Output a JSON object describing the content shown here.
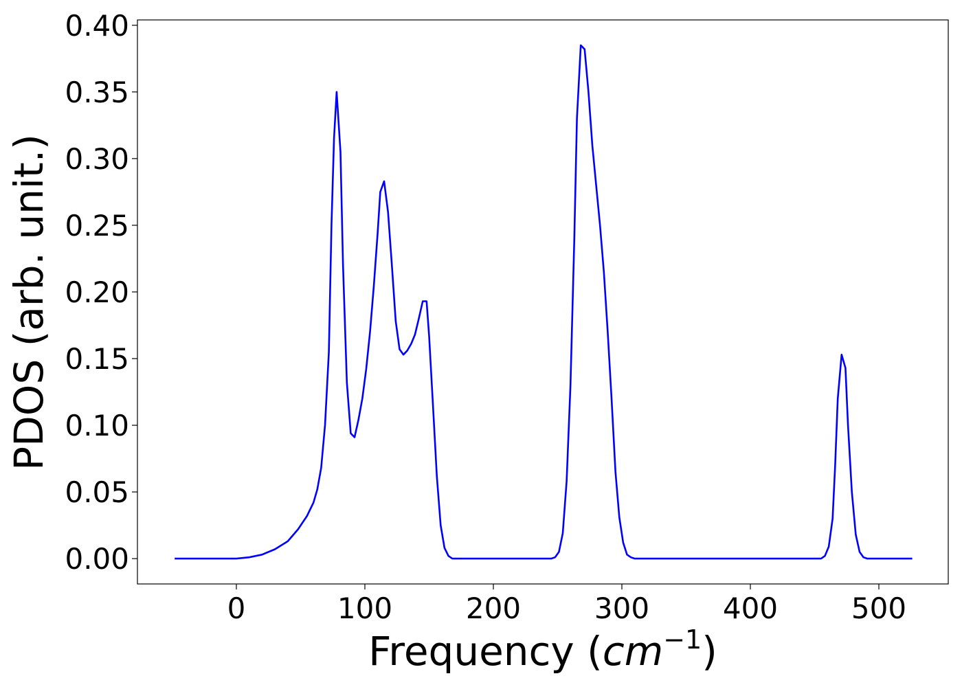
{
  "chart_data": {
    "type": "line",
    "xlabel_main": "Frequency (",
    "xlabel_unit": "cm",
    "xlabel_exp": "−1",
    "xlabel_close": ")",
    "ylabel": "PDOS (arb. unit.)",
    "xlim": [
      -77,
      554
    ],
    "ylim": [
      -0.019,
      0.404
    ],
    "x_ticks": [
      0,
      100,
      200,
      300,
      400,
      500
    ],
    "x_tick_labels": [
      "0",
      "100",
      "200",
      "300",
      "400",
      "500"
    ],
    "y_ticks": [
      0.0,
      0.05,
      0.1,
      0.15,
      0.2,
      0.25,
      0.3,
      0.35,
      0.4
    ],
    "y_tick_labels": [
      "0.00",
      "0.05",
      "0.10",
      "0.15",
      "0.20",
      "0.25",
      "0.30",
      "0.35",
      "0.40"
    ],
    "grid": false,
    "series": [
      {
        "color": "#0000ff",
        "points": [
          [
            -48,
            0.0
          ],
          [
            0,
            0.0
          ],
          [
            10,
            0.001
          ],
          [
            20,
            0.003
          ],
          [
            30,
            0.007
          ],
          [
            40,
            0.013
          ],
          [
            48,
            0.022
          ],
          [
            55,
            0.032
          ],
          [
            60,
            0.042
          ],
          [
            63,
            0.052
          ],
          [
            66,
            0.068
          ],
          [
            69,
            0.1
          ],
          [
            72,
            0.155
          ],
          [
            74,
            0.25
          ],
          [
            76,
            0.315
          ],
          [
            78,
            0.35
          ],
          [
            81,
            0.305
          ],
          [
            83,
            0.22
          ],
          [
            86,
            0.132
          ],
          [
            89,
            0.094
          ],
          [
            92,
            0.091
          ],
          [
            95,
            0.104
          ],
          [
            98,
            0.12
          ],
          [
            101,
            0.142
          ],
          [
            104,
            0.17
          ],
          [
            107,
            0.205
          ],
          [
            110,
            0.245
          ],
          [
            112,
            0.275
          ],
          [
            115,
            0.283
          ],
          [
            118,
            0.26
          ],
          [
            121,
            0.22
          ],
          [
            124,
            0.178
          ],
          [
            127,
            0.157
          ],
          [
            130,
            0.153
          ],
          [
            133,
            0.156
          ],
          [
            136,
            0.161
          ],
          [
            139,
            0.168
          ],
          [
            142,
            0.18
          ],
          [
            145,
            0.193
          ],
          [
            148,
            0.193
          ],
          [
            150,
            0.167
          ],
          [
            153,
            0.115
          ],
          [
            156,
            0.062
          ],
          [
            159,
            0.025
          ],
          [
            162,
            0.008
          ],
          [
            165,
            0.002
          ],
          [
            168,
            0.0
          ],
          [
            200,
            0.0
          ],
          [
            245,
            0.0
          ],
          [
            248,
            0.001
          ],
          [
            251,
            0.005
          ],
          [
            254,
            0.019
          ],
          [
            257,
            0.058
          ],
          [
            260,
            0.13
          ],
          [
            263,
            0.24
          ],
          [
            265,
            0.33
          ],
          [
            268,
            0.385
          ],
          [
            271,
            0.382
          ],
          [
            274,
            0.35
          ],
          [
            277,
            0.31
          ],
          [
            280,
            0.28
          ],
          [
            283,
            0.25
          ],
          [
            286,
            0.215
          ],
          [
            289,
            0.17
          ],
          [
            292,
            0.12
          ],
          [
            295,
            0.065
          ],
          [
            298,
            0.031
          ],
          [
            301,
            0.012
          ],
          [
            304,
            0.003
          ],
          [
            307,
            0.001
          ],
          [
            310,
            0.0
          ],
          [
            400,
            0.0
          ],
          [
            455,
            0.0
          ],
          [
            458,
            0.002
          ],
          [
            461,
            0.009
          ],
          [
            464,
            0.03
          ],
          [
            466,
            0.07
          ],
          [
            468,
            0.12
          ],
          [
            471,
            0.153
          ],
          [
            474,
            0.143
          ],
          [
            476,
            0.1
          ],
          [
            479,
            0.05
          ],
          [
            482,
            0.018
          ],
          [
            485,
            0.005
          ],
          [
            488,
            0.001
          ],
          [
            491,
            0.0
          ],
          [
            526,
            0.0
          ]
        ]
      }
    ]
  }
}
